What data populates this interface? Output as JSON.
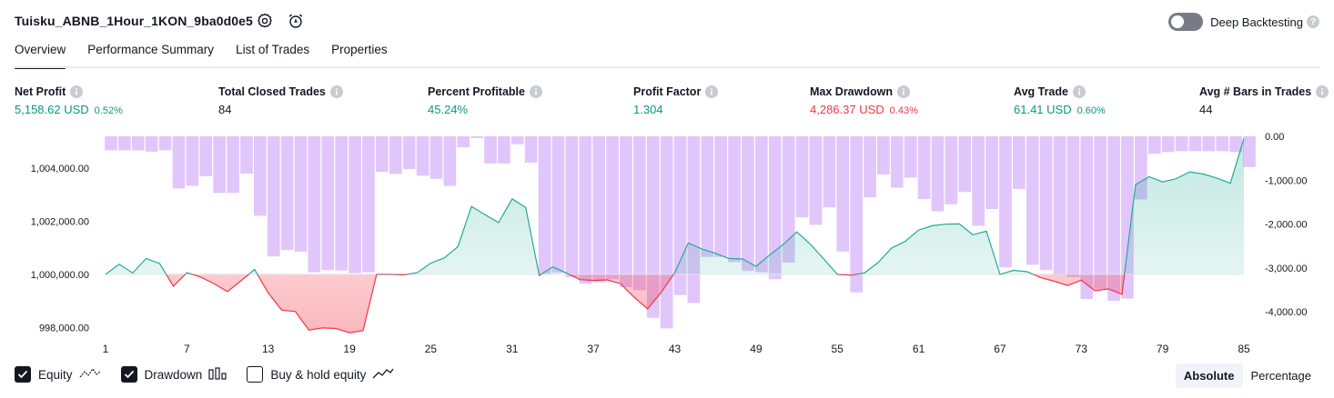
{
  "header": {
    "title": "Tuisku_ABNB_1Hour_1KON_9ba0d0e5",
    "deep_backtesting_label": "Deep Backtesting"
  },
  "tabs": [
    {
      "label": "Overview",
      "active": true
    },
    {
      "label": "Performance Summary",
      "active": false
    },
    {
      "label": "List of Trades",
      "active": false
    },
    {
      "label": "Properties",
      "active": false
    }
  ],
  "stats": [
    {
      "label": "Net Profit",
      "value": "5,158.62 USD",
      "pct": "0.52%",
      "tone": "pos"
    },
    {
      "label": "Total Closed Trades",
      "value": "84",
      "pct": "",
      "tone": ""
    },
    {
      "label": "Percent Profitable",
      "value": "45.24%",
      "pct": "",
      "tone": "pos"
    },
    {
      "label": "Profit Factor",
      "value": "1.304",
      "pct": "",
      "tone": "pos"
    },
    {
      "label": "Max Drawdown",
      "value": "4,286.37 USD",
      "pct": "0.43%",
      "tone": "neg"
    },
    {
      "label": "Avg Trade",
      "value": "61.41 USD",
      "pct": "0.60%",
      "tone": "pos"
    },
    {
      "label": "Avg # Bars in Trades",
      "value": "44",
      "pct": "",
      "tone": ""
    }
  ],
  "legend": {
    "equity": "Equity",
    "drawdown": "Drawdown",
    "buy_hold": "Buy & hold equity"
  },
  "view_toggle": {
    "absolute": "Absolute",
    "percentage": "Percentage"
  },
  "colors": {
    "equity_up": "#22ab94",
    "equity_down": "#f23645",
    "drawdown_bar": "#e1c6fb",
    "toggle_off": "#787b86"
  },
  "chart_data": {
    "type": "line",
    "x_tick_labels": [
      "1",
      "7",
      "13",
      "19",
      "25",
      "31",
      "37",
      "43",
      "49",
      "55",
      "61",
      "67",
      "73",
      "79",
      "85"
    ],
    "y_left_tick_labels": [
      "1,004,000.00",
      "1,002,000.00",
      "1,000,000.00",
      "998,000.00"
    ],
    "y_right_tick_labels": [
      "0.00",
      "-1,000.00",
      "-2,000.00",
      "-3,000.00",
      "-4,000.00"
    ],
    "y_left_range": [
      997600,
      1005200
    ],
    "y_right_range": [
      -4600,
      0
    ],
    "baseline": 1000000,
    "series": [
      {
        "name": "Equity",
        "x": [
          1,
          2,
          3,
          4,
          5,
          6,
          7,
          8,
          9,
          10,
          11,
          12,
          13,
          14,
          15,
          16,
          17,
          18,
          19,
          20,
          21,
          22,
          23,
          24,
          25,
          26,
          27,
          28,
          29,
          30,
          31,
          32,
          33,
          34,
          35,
          36,
          37,
          38,
          39,
          40,
          41,
          42,
          43,
          44,
          45,
          46,
          47,
          48,
          49,
          50,
          51,
          52,
          53,
          54,
          55,
          56,
          57,
          58,
          59,
          60,
          61,
          62,
          63,
          64,
          65,
          66,
          67,
          68,
          69,
          70,
          71,
          72,
          73,
          74,
          75,
          76,
          77,
          78,
          79,
          80,
          81,
          82,
          83,
          84,
          85
        ],
        "values": [
          1000000,
          1000380,
          1000050,
          1000600,
          1000400,
          999550,
          1000060,
          999900,
          999650,
          999350,
          999760,
          1000180,
          999300,
          998650,
          998600,
          997900,
          997980,
          997960,
          997800,
          997880,
          1000000,
          1000000,
          999980,
          1000060,
          1000420,
          1000620,
          1001040,
          1002560,
          1002250,
          1001950,
          1002840,
          1002520,
          999960,
          1000280,
          1000050,
          999800,
          999770,
          999790,
          999650,
          999140,
          998700,
          999320,
          1000060,
          1001180,
          1000960,
          1000790,
          1000600,
          1000580,
          1000300,
          1000730,
          1001120,
          1001600,
          1001140,
          1000580,
          1000000,
          999970,
          1000050,
          1000440,
          1000990,
          1001240,
          1001670,
          1001830,
          1001890,
          1001900,
          1001490,
          1001630,
          1000000,
          1000150,
          1000100,
          999880,
          999740,
          999580,
          999780,
          999380,
          999450,
          999250,
          1003380,
          1003680,
          1003480,
          1003600,
          1003860,
          1003780,
          1003630,
          1003430,
          1005120
        ]
      },
      {
        "name": "Drawdown",
        "x": [
          1,
          2,
          3,
          4,
          5,
          6,
          7,
          8,
          9,
          10,
          11,
          12,
          13,
          14,
          15,
          16,
          17,
          18,
          19,
          20,
          21,
          22,
          23,
          24,
          25,
          26,
          27,
          28,
          29,
          30,
          31,
          32,
          33,
          34,
          35,
          36,
          37,
          38,
          39,
          40,
          41,
          42,
          43,
          44,
          45,
          46,
          47,
          48,
          49,
          50,
          51,
          52,
          53,
          54,
          55,
          56,
          57,
          58,
          59,
          60,
          61,
          62,
          63,
          64,
          65,
          66,
          67,
          68,
          69,
          70,
          71,
          72,
          73,
          74,
          75,
          76,
          77,
          78,
          79,
          80,
          81,
          82,
          83,
          84,
          85
        ],
        "values": [
          -320,
          -320,
          -320,
          -350,
          -320,
          -1190,
          -1130,
          -910,
          -1290,
          -1290,
          -850,
          -1810,
          -2740,
          -2590,
          -2630,
          -3100,
          -3050,
          -3060,
          -3120,
          -3100,
          -810,
          -860,
          -750,
          -900,
          -970,
          -1130,
          -250,
          -40,
          -620,
          -620,
          -180,
          -600,
          -3150,
          -3110,
          -3210,
          -3360,
          -3330,
          -3260,
          -3440,
          -3510,
          -4140,
          -4380,
          -3620,
          -3800,
          -2750,
          -2750,
          -2870,
          -3070,
          -3100,
          -3260,
          -2880,
          -1850,
          -2020,
          -1620,
          -2630,
          -3560,
          -1390,
          -870,
          -1170,
          -940,
          -1430,
          -1710,
          -1550,
          -1270,
          -2040,
          -1660,
          -2990,
          -1200,
          -2930,
          -3050,
          -3160,
          -3210,
          -3710,
          -3480,
          -3750,
          -3700,
          -1440,
          -400,
          -360,
          -340,
          -340,
          -340,
          -340,
          -360,
          -700
        ]
      }
    ]
  }
}
